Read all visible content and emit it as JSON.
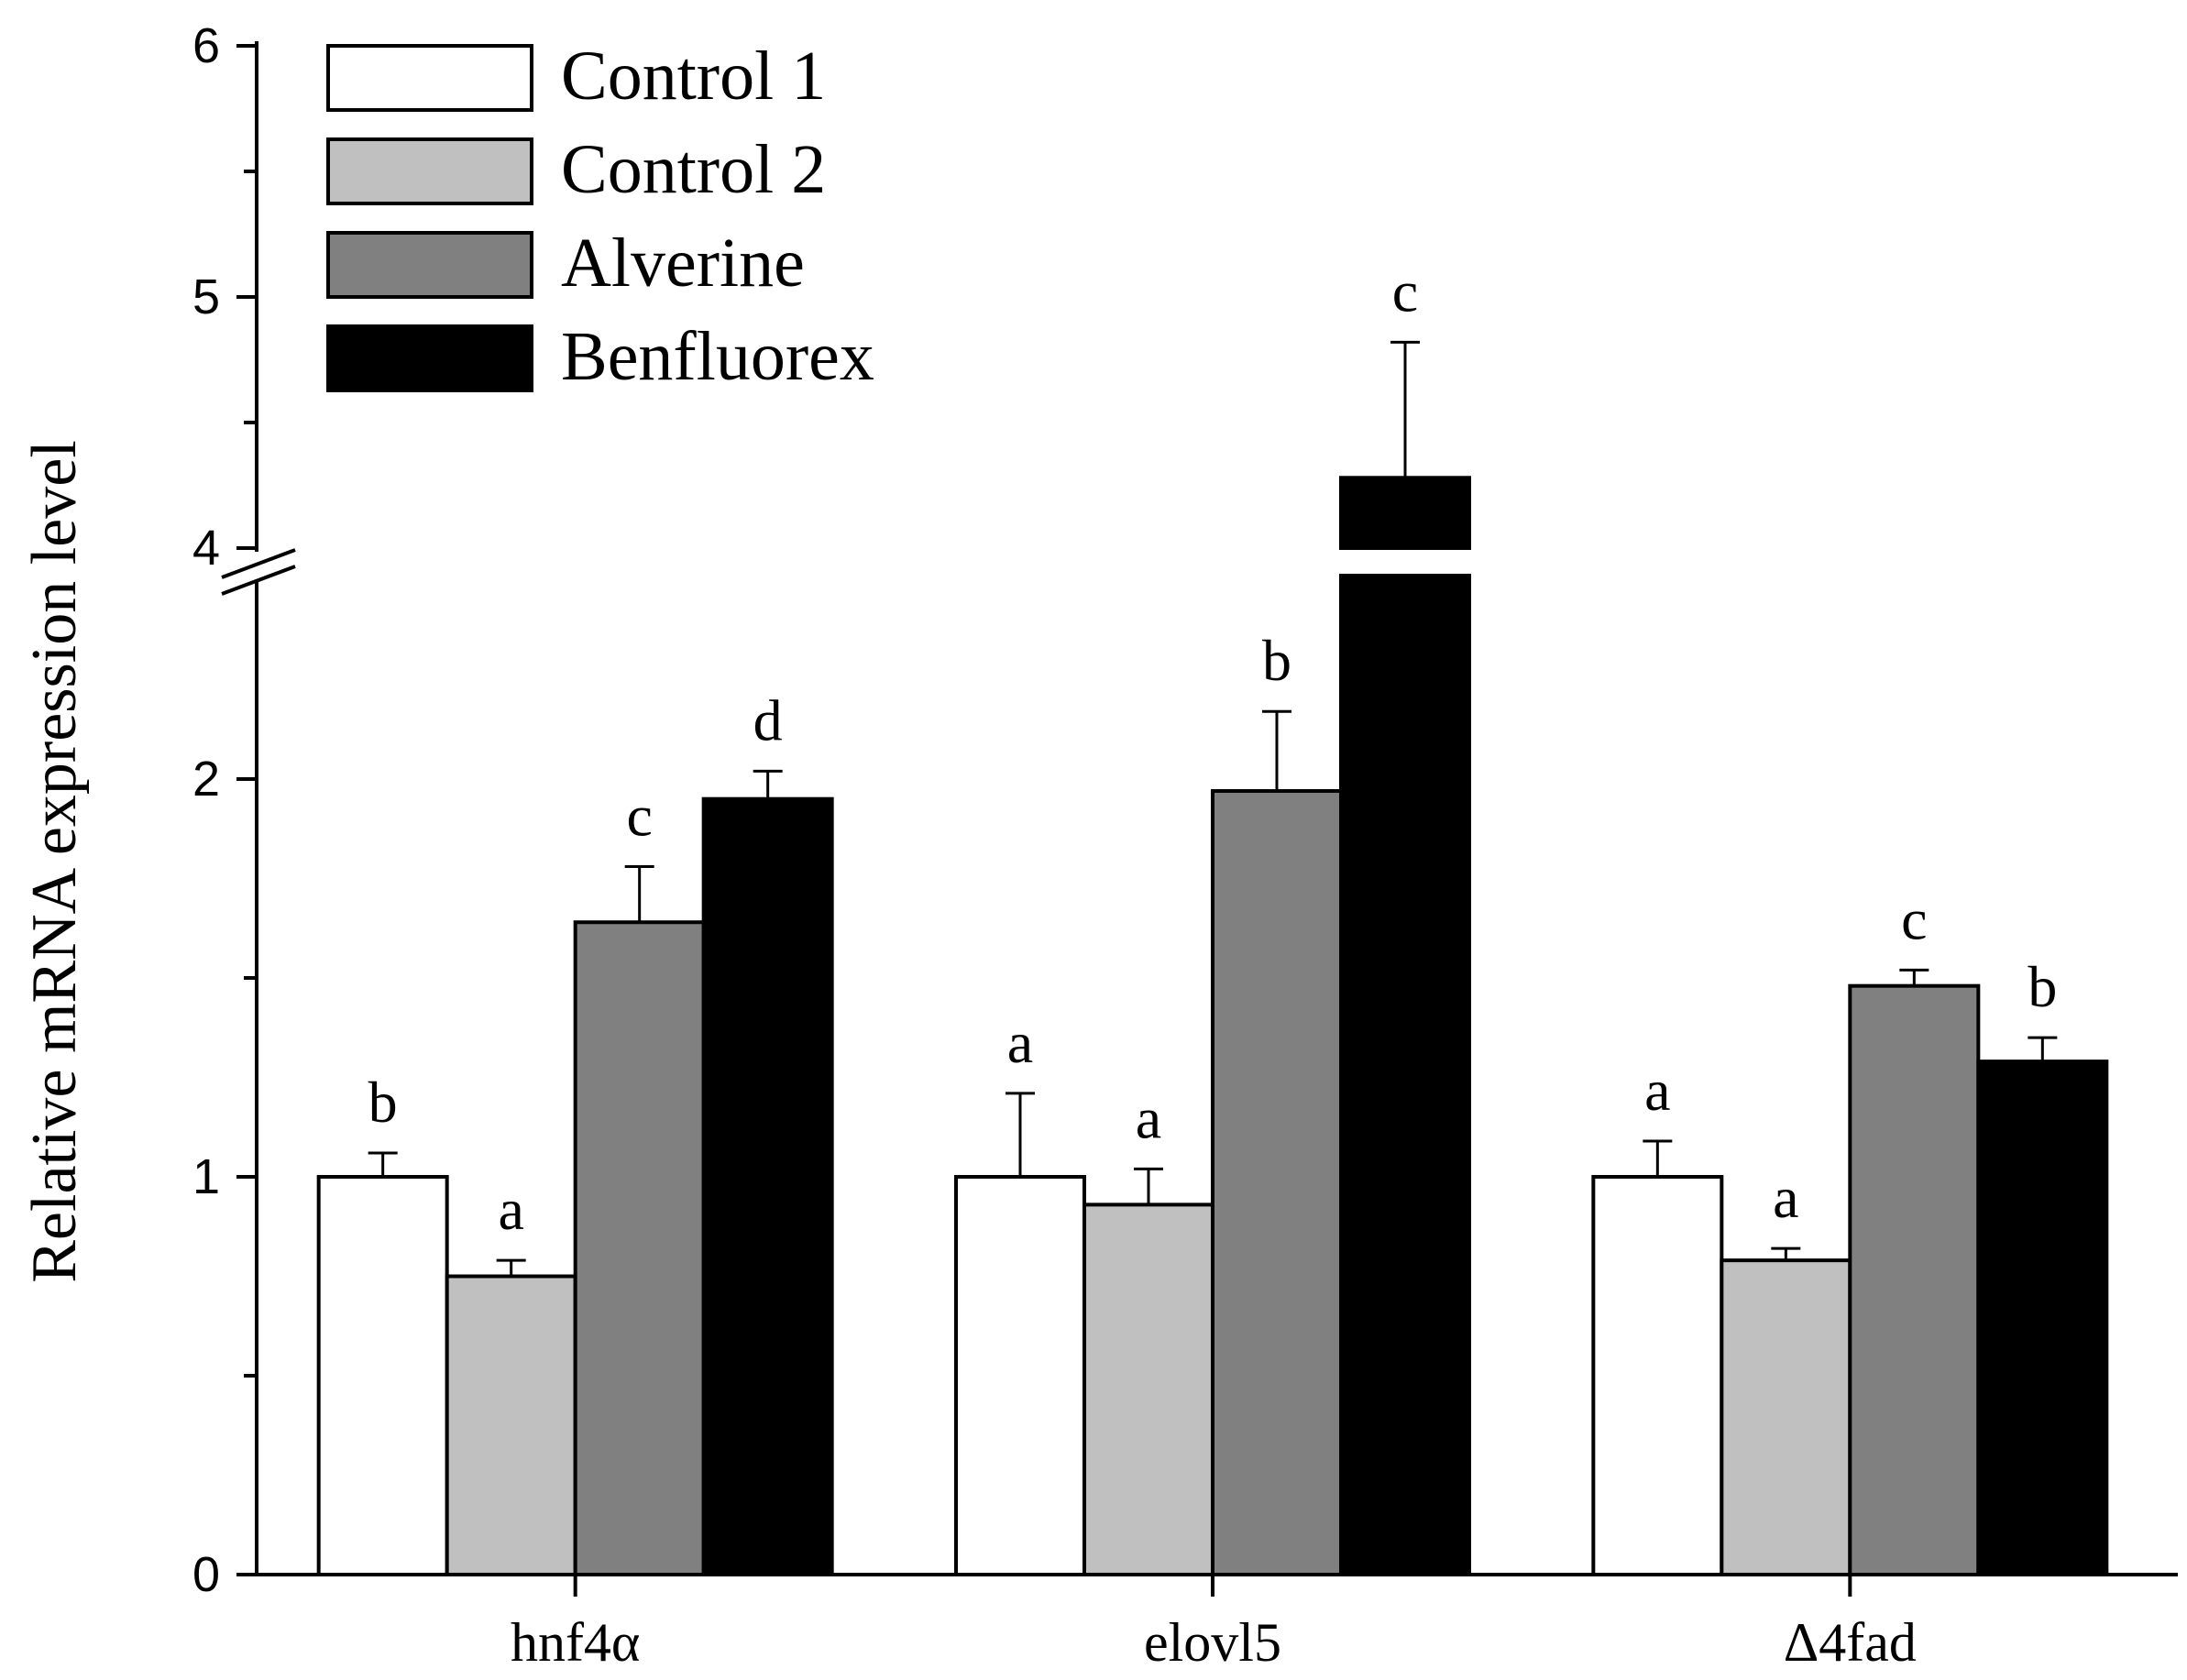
{
  "chart_data": {
    "type": "bar",
    "title": "",
    "xlabel": "",
    "ylabel": "Relative mRNA expression level",
    "categories": [
      "hnf4α",
      "elovl5",
      "Δ4fad"
    ],
    "axis_break": {
      "lower_range": [
        0,
        2.4
      ],
      "upper_range": [
        4,
        6
      ]
    },
    "yticks_lower": [
      "0",
      "1",
      "2"
    ],
    "yticks_upper": [
      "4",
      "5",
      "6"
    ],
    "series": [
      {
        "name": "Control 1",
        "color": "#ffffff",
        "values": [
          1.0,
          1.0,
          1.0
        ],
        "errors": [
          0.06,
          0.21,
          0.09
        ],
        "letters": [
          "b",
          "a",
          "a"
        ]
      },
      {
        "name": "Control 2",
        "color": "#c0c0c0",
        "values": [
          0.75,
          0.93,
          0.79
        ],
        "errors": [
          0.04,
          0.09,
          0.03
        ],
        "letters": [
          "a",
          "a",
          "a"
        ]
      },
      {
        "name": "Alverine",
        "color": "#808080",
        "values": [
          1.64,
          1.97,
          1.48
        ],
        "errors": [
          0.14,
          0.2,
          0.04
        ],
        "letters": [
          "c",
          "b",
          "c"
        ]
      },
      {
        "name": "Benfluorex",
        "color": "#000000",
        "values": [
          1.95,
          4.28,
          1.29
        ],
        "errors": [
          0.07,
          0.54,
          0.06
        ],
        "letters": [
          "d",
          "c",
          "b"
        ]
      }
    ],
    "legend_position": "top-left"
  }
}
